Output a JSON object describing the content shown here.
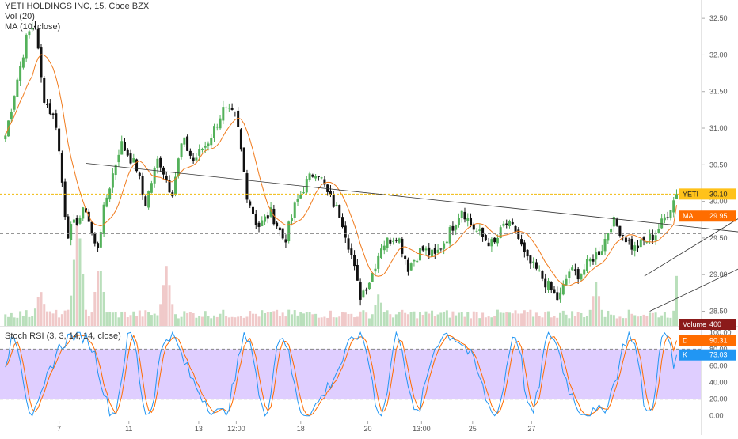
{
  "chart": {
    "symbol_title": "YETI HOLDINGS INC, 15, Cboe BZX",
    "indicators": [
      "Vol (20)",
      "MA (10, close)"
    ],
    "stoch_title": "Stoch RSI (3, 3, 14, 14, close)",
    "x_tick_labels": [
      "7",
      "11",
      "13",
      "12:00",
      "18",
      "20",
      "13:00",
      "25",
      "27"
    ],
    "price_ticks": [
      "32.50",
      "32.00",
      "31.50",
      "31.00",
      "30.50",
      "30.00",
      "29.50",
      "29.00",
      "28.50"
    ],
    "stoch_ticks": [
      "100.00",
      "80.00",
      "60.00",
      "40.00",
      "20.00",
      "0.00"
    ],
    "badges": {
      "yeti_label": "YETI",
      "yeti_value": "30.10",
      "ma_label": "MA",
      "ma_value": "29.95",
      "volume_label": "Volume",
      "volume_value": "400",
      "d_label": "D",
      "d_value": "90.31",
      "k_label": "K",
      "k_value": "73.03"
    },
    "colors": {
      "up_candle": "#53b15a",
      "down_candle": "#111111",
      "ma_line": "#f07b1d",
      "current_price_line": "#f0b90b",
      "stoch_k": "#2196f3",
      "stoch_d": "#ff6d00",
      "stoch_band": "#d9c6ff",
      "badge_yeti": "#ffc21a",
      "badge_ma": "#ff6d00",
      "badge_volume": "#8b1a1a",
      "badge_d": "#ff6d00",
      "badge_k": "#2196f3"
    }
  },
  "chart_data": {
    "type": "candlestick",
    "title": "YETI HOLDINGS INC, 15, Cboe BZX",
    "price_range": [
      28.3,
      32.75
    ],
    "stoch_range": [
      -5,
      105
    ],
    "stoch_band": [
      20,
      80
    ],
    "last_price": 30.1,
    "ma_last": 29.95,
    "stoch_d_last": 90.31,
    "stoch_k_last": 73.03,
    "volume_last": 400,
    "dashed_level": 29.56,
    "trendlines": [
      {
        "name": "descending",
        "from": [
          3,
          30.52
        ],
        "to": [
          30,
          29.48
        ]
      },
      {
        "name": "channel-lower",
        "from": [
          24,
          28.5
        ],
        "to": [
          30,
          29.55
        ]
      },
      {
        "name": "channel-upper",
        "from": [
          23.8,
          28.98
        ],
        "to": [
          30.8,
          30.55
        ]
      }
    ],
    "close_anchors": [
      [
        0.0,
        30.9
      ],
      [
        0.4,
        31.6
      ],
      [
        0.8,
        32.25
      ],
      [
        1.1,
        32.45
      ],
      [
        1.4,
        31.45
      ],
      [
        1.9,
        31.05
      ],
      [
        2.3,
        29.55
      ],
      [
        3.0,
        29.9
      ],
      [
        3.4,
        29.3
      ],
      [
        3.7,
        29.95
      ],
      [
        4.3,
        30.8
      ],
      [
        4.9,
        30.45
      ],
      [
        5.2,
        29.95
      ],
      [
        5.7,
        30.6
      ],
      [
        6.2,
        30.1
      ],
      [
        6.6,
        30.85
      ],
      [
        7.0,
        30.55
      ],
      [
        7.6,
        30.85
      ],
      [
        8.1,
        31.25
      ],
      [
        8.6,
        31.15
      ],
      [
        9.0,
        30.1
      ],
      [
        9.4,
        29.65
      ],
      [
        9.9,
        29.85
      ],
      [
        10.4,
        29.45
      ],
      [
        10.8,
        29.95
      ],
      [
        11.2,
        30.25
      ],
      [
        11.6,
        30.45
      ],
      [
        12.0,
        30.1
      ],
      [
        12.5,
        29.8
      ],
      [
        12.9,
        29.25
      ],
      [
        13.2,
        28.7
      ],
      [
        13.6,
        28.95
      ],
      [
        14.0,
        29.4
      ],
      [
        14.6,
        29.55
      ],
      [
        15.0,
        29.1
      ],
      [
        15.5,
        29.35
      ],
      [
        16.0,
        29.25
      ],
      [
        16.5,
        29.55
      ],
      [
        17.0,
        29.9
      ],
      [
        17.4,
        29.65
      ],
      [
        17.8,
        29.5
      ],
      [
        18.2,
        29.4
      ],
      [
        18.6,
        29.7
      ],
      [
        19.0,
        29.6
      ],
      [
        19.4,
        29.2
      ],
      [
        19.8,
        29.05
      ],
      [
        20.2,
        28.85
      ],
      [
        20.6,
        28.65
      ],
      [
        21.0,
        29.05
      ],
      [
        21.4,
        29.0
      ],
      [
        21.8,
        29.2
      ],
      [
        22.2,
        29.35
      ],
      [
        22.6,
        29.75
      ],
      [
        23.0,
        29.55
      ],
      [
        23.4,
        29.35
      ],
      [
        23.8,
        29.45
      ],
      [
        24.2,
        29.55
      ],
      [
        24.6,
        29.8
      ],
      [
        25.0,
        30.1
      ]
    ],
    "volume_spikes": [
      [
        1.3,
        300
      ],
      [
        2.7,
        900
      ],
      [
        3.5,
        520
      ],
      [
        6.0,
        480
      ],
      [
        13.9,
        260
      ],
      [
        22.0,
        350
      ]
    ],
    "x_ticks": [
      {
        "label": "7",
        "x": 2.0
      },
      {
        "label": "11",
        "x": 4.6
      },
      {
        "label": "13",
        "x": 7.2
      },
      {
        "label": "12:00",
        "x": 8.6
      },
      {
        "label": "18",
        "x": 11.0
      },
      {
        "label": "20",
        "x": 13.5
      },
      {
        "label": "13:00",
        "x": 15.5
      },
      {
        "label": "25",
        "x": 17.4
      },
      {
        "label": "27",
        "x": 19.6
      }
    ]
  }
}
